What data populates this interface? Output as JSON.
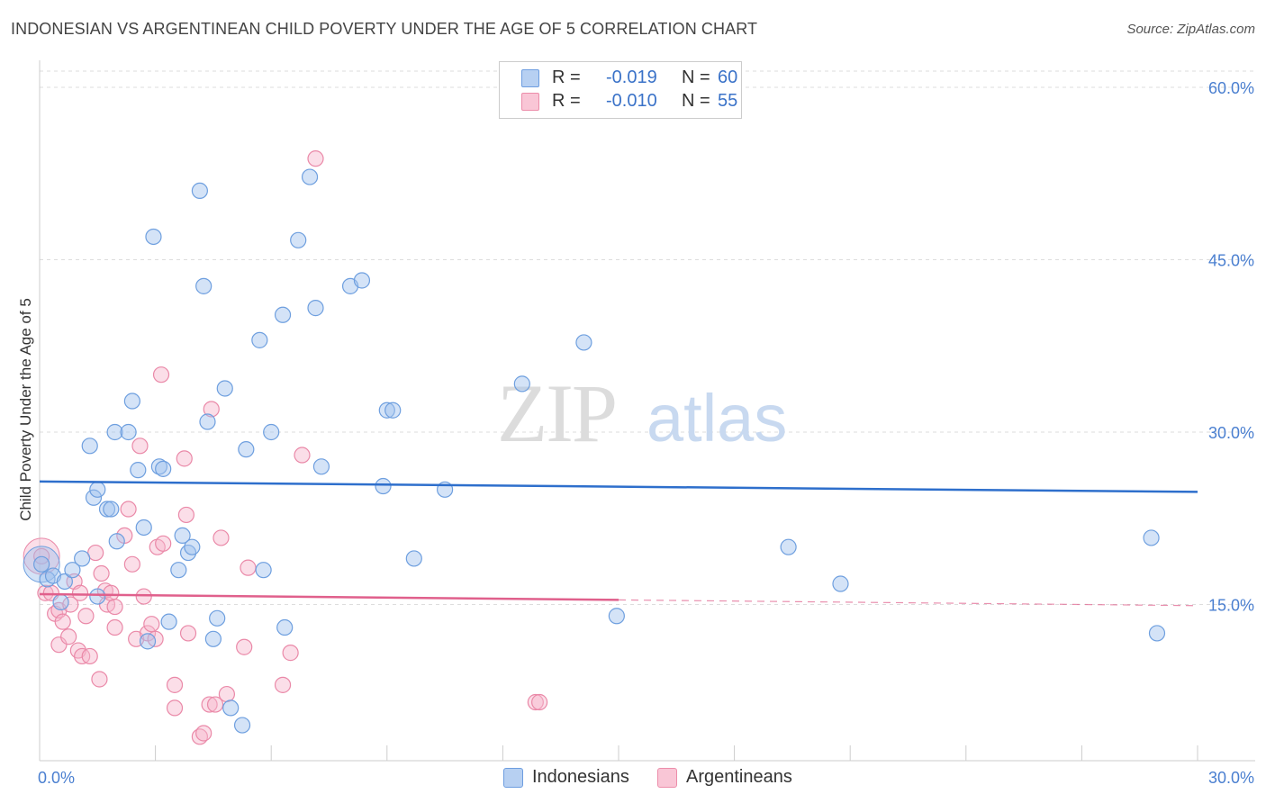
{
  "header": {
    "title": "INDONESIAN VS ARGENTINEAN CHILD POVERTY UNDER THE AGE OF 5 CORRELATION CHART",
    "source": "Source: ZipAtlas.com"
  },
  "watermark": {
    "zip": "ZIP",
    "atlas": "atlas"
  },
  "legend": {
    "r_label": "R =",
    "n_label": "N =",
    "series": [
      {
        "name": "Indonesians",
        "r": "-0.019",
        "n": "60",
        "fill": "#b7d0f2",
        "stroke": "#6d9de0"
      },
      {
        "name": "Argentineans",
        "r": "-0.010",
        "n": "55",
        "fill": "#f9c6d6",
        "stroke": "#ec8daa"
      }
    ]
  },
  "colors": {
    "blue_line": "#2e6fcc",
    "pink_line": "#e0608c",
    "blue_point_fill": "rgba(160,194,238,0.45)",
    "blue_point_stroke": "#6e9fdf",
    "pink_point_fill": "rgba(247,182,204,0.45)",
    "pink_point_stroke": "#ea89a8",
    "grid": "#dddddd",
    "tick_text": "#4a7fd0"
  },
  "chart_data": {
    "type": "scatter",
    "title": "INDONESIAN VS ARGENTINEAN CHILD POVERTY UNDER THE AGE OF 5 CORRELATION CHART",
    "xlabel": "",
    "ylabel": "Child Poverty Under the Age of 5",
    "xlim": [
      0,
      30
    ],
    "ylim": [
      0,
      60
    ],
    "x_tick_labels": [
      "0.0%",
      "30.0%"
    ],
    "y_ticks": [
      15,
      30,
      45,
      60
    ],
    "y_tick_labels": [
      "15.0%",
      "30.0%",
      "45.0%",
      "60.0%"
    ],
    "grid": true,
    "series": [
      {
        "name": "Indonesians",
        "r": -0.019,
        "n": 60,
        "trend": {
          "x": [
            0,
            30
          ],
          "y": [
            25.7,
            24.8
          ],
          "dashed_from": null
        },
        "points": [
          [
            0.05,
            18.5
          ],
          [
            0.2,
            17.2
          ],
          [
            0.35,
            17.5
          ],
          [
            0.55,
            15.2
          ],
          [
            0.65,
            17.0
          ],
          [
            0.85,
            18.0
          ],
          [
            1.1,
            19.0
          ],
          [
            1.3,
            28.8
          ],
          [
            1.4,
            24.3
          ],
          [
            1.5,
            25.0
          ],
          [
            1.5,
            15.7
          ],
          [
            1.75,
            23.3
          ],
          [
            1.85,
            23.3
          ],
          [
            2.0,
            20.5
          ],
          [
            1.95,
            30.0
          ],
          [
            2.3,
            30.0
          ],
          [
            2.4,
            32.7
          ],
          [
            2.55,
            26.7
          ],
          [
            2.7,
            21.7
          ],
          [
            2.8,
            11.8
          ],
          [
            2.95,
            47.0
          ],
          [
            3.1,
            27.0
          ],
          [
            3.2,
            26.8
          ],
          [
            3.35,
            13.5
          ],
          [
            3.6,
            18.0
          ],
          [
            3.7,
            21.0
          ],
          [
            3.85,
            19.5
          ],
          [
            3.95,
            20.0
          ],
          [
            4.15,
            51.0
          ],
          [
            4.25,
            42.7
          ],
          [
            4.35,
            30.9
          ],
          [
            4.5,
            12.0
          ],
          [
            4.6,
            13.8
          ],
          [
            4.8,
            33.8
          ],
          [
            4.95,
            6.0
          ],
          [
            5.25,
            4.5
          ],
          [
            5.35,
            28.5
          ],
          [
            5.7,
            38.0
          ],
          [
            5.8,
            18.0
          ],
          [
            6.0,
            30.0
          ],
          [
            6.3,
            40.2
          ],
          [
            6.35,
            13.0
          ],
          [
            6.7,
            46.7
          ],
          [
            7.0,
            52.2
          ],
          [
            7.15,
            40.8
          ],
          [
            7.3,
            27.0
          ],
          [
            8.05,
            42.7
          ],
          [
            8.35,
            43.2
          ],
          [
            8.9,
            25.3
          ],
          [
            9.0,
            31.9
          ],
          [
            9.15,
            31.9
          ],
          [
            9.7,
            19.0
          ],
          [
            10.5,
            25.0
          ],
          [
            12.5,
            34.2
          ],
          [
            14.1,
            37.8
          ],
          [
            14.95,
            14.0
          ],
          [
            19.4,
            20.0
          ],
          [
            20.75,
            16.8
          ],
          [
            28.8,
            20.8
          ],
          [
            28.95,
            12.5
          ]
        ],
        "large_point": [
          0.05,
          18.5
        ]
      },
      {
        "name": "Argentineans",
        "r": -0.01,
        "n": 55,
        "trend": {
          "x": [
            0,
            30
          ],
          "y": [
            15.9,
            14.9
          ],
          "dashed_from": 15
        },
        "points": [
          [
            0.05,
            19.2
          ],
          [
            0.15,
            16.0
          ],
          [
            0.3,
            16.0
          ],
          [
            0.4,
            14.2
          ],
          [
            0.5,
            14.5
          ],
          [
            0.5,
            11.5
          ],
          [
            0.6,
            13.5
          ],
          [
            0.75,
            12.2
          ],
          [
            0.8,
            15.0
          ],
          [
            0.9,
            17.0
          ],
          [
            1.0,
            11.0
          ],
          [
            1.05,
            16.0
          ],
          [
            1.1,
            10.5
          ],
          [
            1.3,
            10.5
          ],
          [
            1.2,
            14.0
          ],
          [
            1.45,
            19.5
          ],
          [
            1.55,
            8.5
          ],
          [
            1.6,
            17.7
          ],
          [
            1.7,
            16.2
          ],
          [
            1.75,
            15.0
          ],
          [
            1.85,
            16.0
          ],
          [
            1.95,
            14.8
          ],
          [
            1.95,
            13.0
          ],
          [
            2.2,
            21.0
          ],
          [
            2.3,
            23.3
          ],
          [
            2.4,
            18.5
          ],
          [
            2.5,
            12.0
          ],
          [
            2.6,
            28.8
          ],
          [
            2.7,
            15.7
          ],
          [
            2.8,
            12.5
          ],
          [
            2.9,
            13.3
          ],
          [
            3.0,
            12.0
          ],
          [
            3.05,
            20.0
          ],
          [
            3.2,
            20.3
          ],
          [
            3.15,
            35.0
          ],
          [
            3.5,
            6.0
          ],
          [
            3.5,
            8.0
          ],
          [
            3.75,
            27.7
          ],
          [
            3.8,
            22.8
          ],
          [
            3.85,
            12.5
          ],
          [
            4.15,
            3.5
          ],
          [
            4.25,
            3.8
          ],
          [
            4.4,
            6.3
          ],
          [
            4.45,
            32.0
          ],
          [
            4.55,
            6.3
          ],
          [
            4.7,
            20.8
          ],
          [
            4.85,
            7.2
          ],
          [
            5.3,
            11.3
          ],
          [
            5.4,
            18.2
          ],
          [
            6.3,
            8.0
          ],
          [
            6.5,
            10.8
          ],
          [
            6.8,
            28.0
          ],
          [
            7.15,
            53.8
          ],
          [
            12.85,
            6.5
          ],
          [
            12.95,
            6.5
          ]
        ],
        "large_point": [
          0.05,
          19.2
        ]
      }
    ]
  }
}
